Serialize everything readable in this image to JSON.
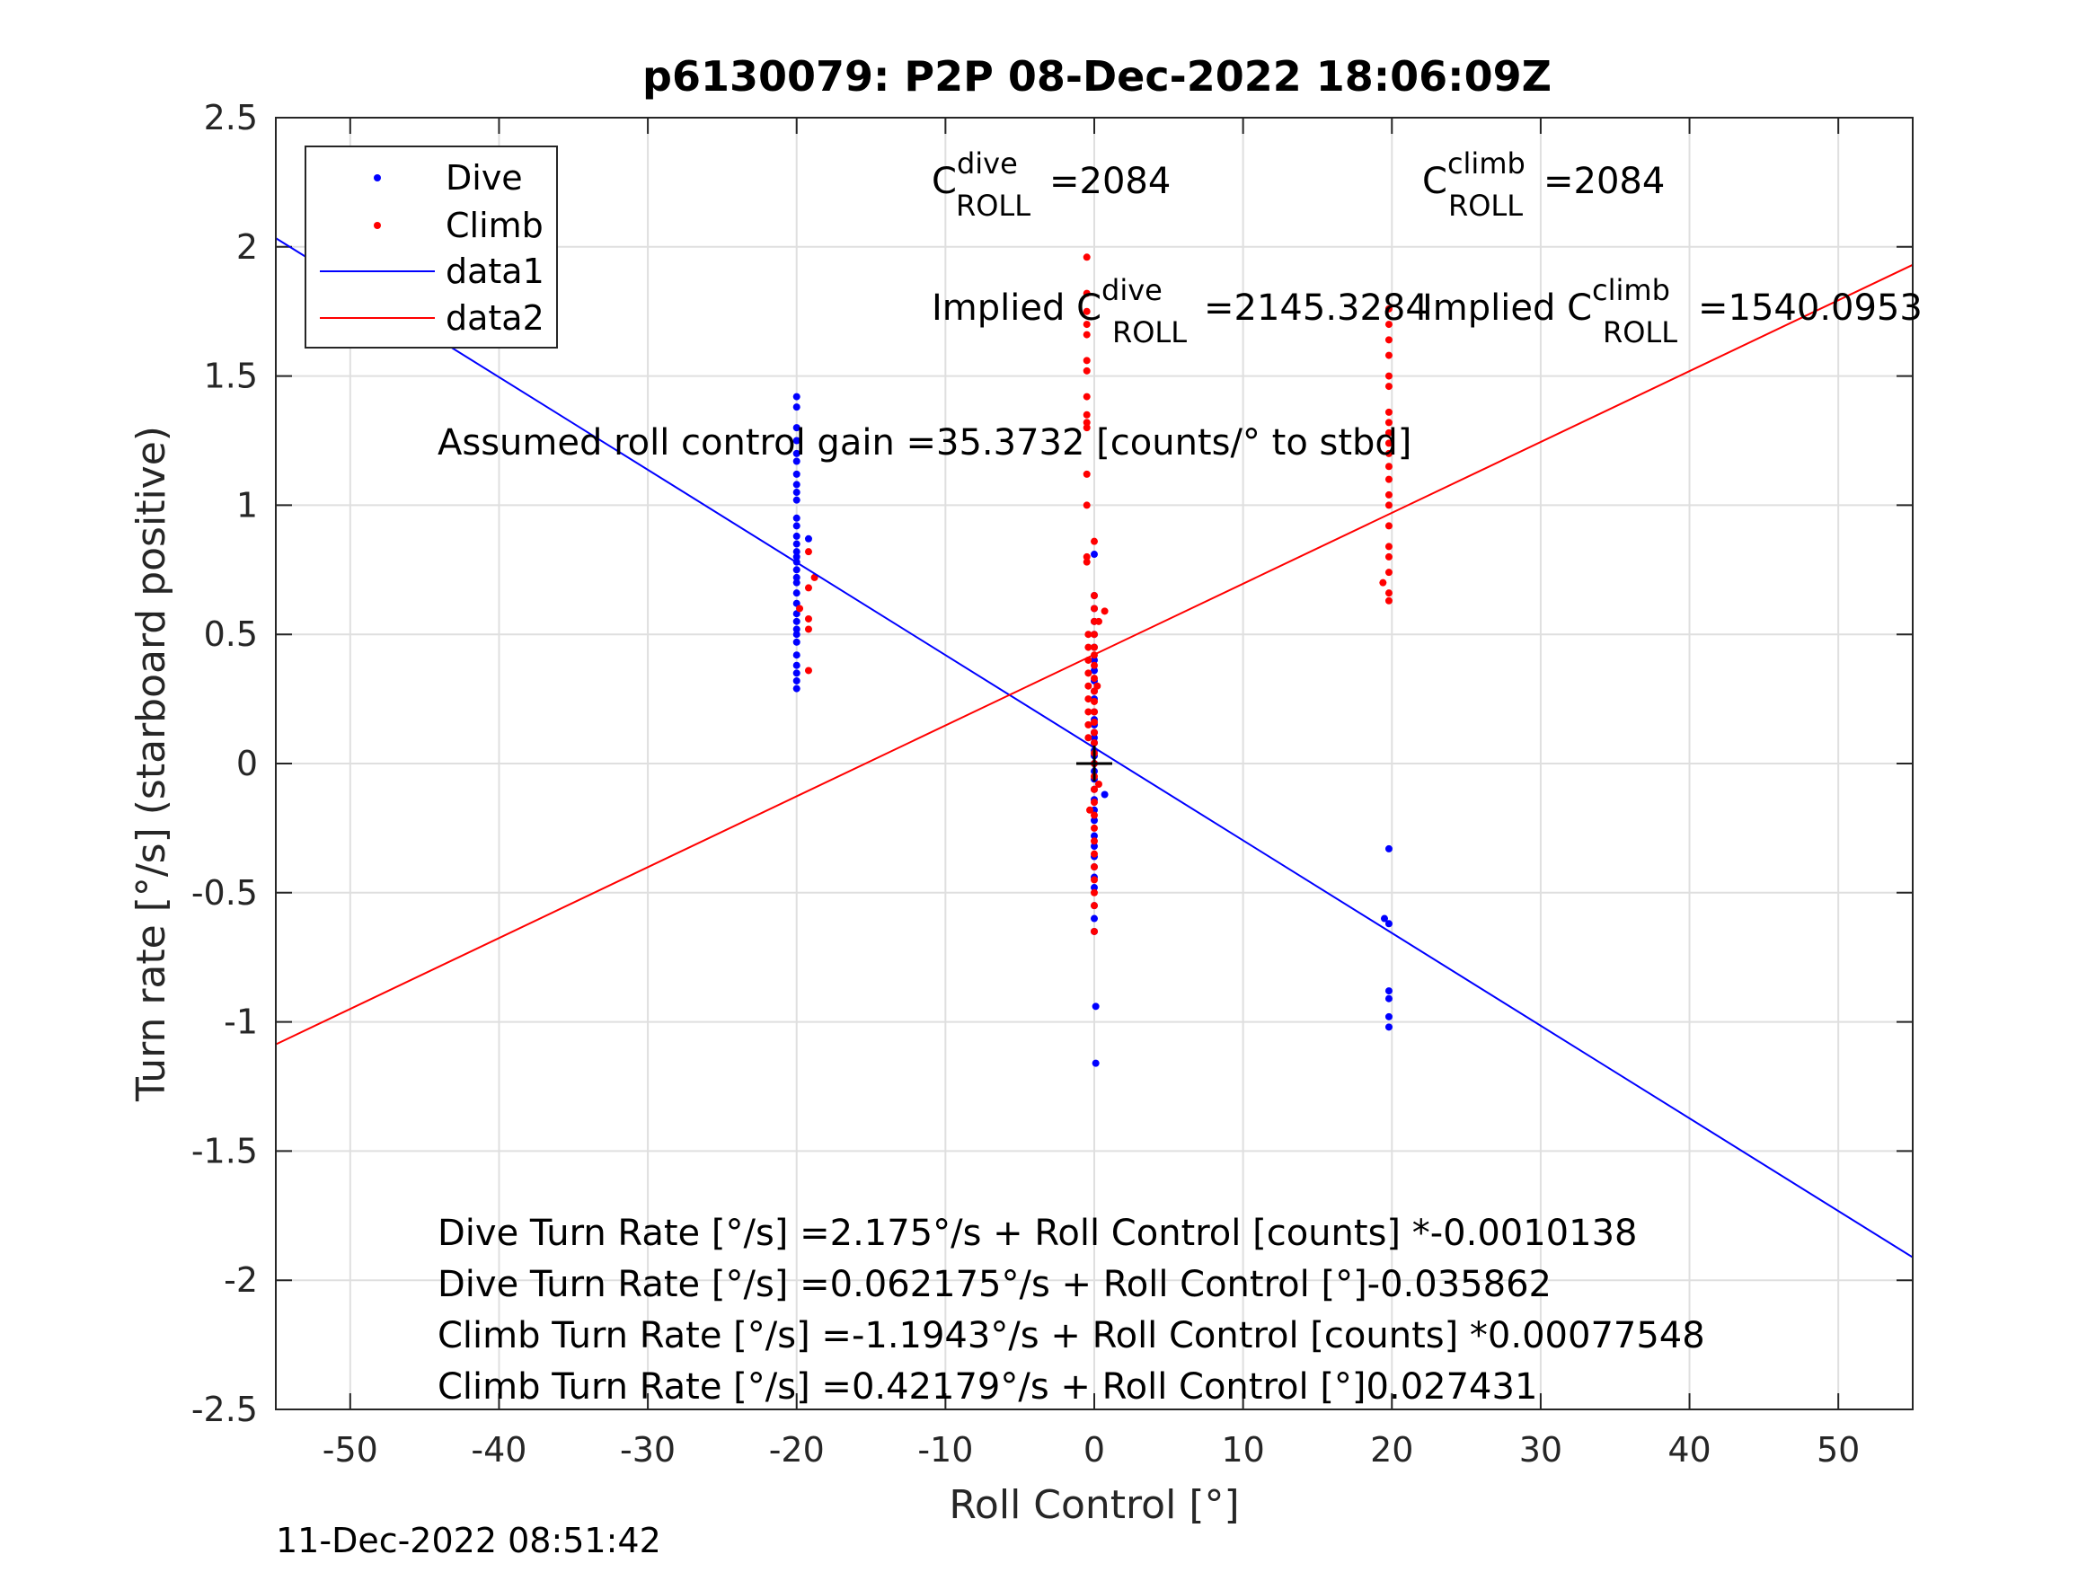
{
  "chart_data": {
    "type": "scatter",
    "title": "p6130079: P2P 08-Dec-2022 18:06:09Z",
    "xlabel": "Roll Control [°]",
    "ylabel": "Turn rate [°/s] (starboard positive)",
    "xlim": [
      -55,
      55
    ],
    "ylim": [
      -2.5,
      2.5
    ],
    "xticks": [
      -50,
      -40,
      -30,
      -20,
      -10,
      0,
      10,
      20,
      30,
      40,
      50
    ],
    "xtick_labels": [
      "-50",
      "-40",
      "-30",
      "-20",
      "-10",
      "0",
      "10",
      "20",
      "30",
      "40",
      "50"
    ],
    "yticks": [
      2.5,
      2,
      1.5,
      1,
      0.5,
      0,
      -0.5,
      -1,
      -1.5,
      -2,
      -2.5
    ],
    "ytick_labels": [
      "2.5",
      "2",
      "1.5",
      "1",
      "0.5",
      "0",
      "-0.5",
      "-1",
      "-1.5",
      "-2",
      "-2.5"
    ],
    "grid": true,
    "legend_position": "top-left",
    "series": [
      {
        "name": "Dive",
        "kind": "points",
        "color": "#0000ff",
        "points": [
          [
            -20,
            1.42
          ],
          [
            -20,
            1.38
          ],
          [
            -20,
            1.3
          ],
          [
            -20,
            1.25
          ],
          [
            -20,
            1.2
          ],
          [
            -20,
            1.17
          ],
          [
            -20,
            1.12
          ],
          [
            -20,
            1.08
          ],
          [
            -20,
            1.05
          ],
          [
            -20,
            1.02
          ],
          [
            -20,
            0.95
          ],
          [
            -20,
            0.92
          ],
          [
            -20,
            0.88
          ],
          [
            -20,
            0.85
          ],
          [
            -20,
            0.82
          ],
          [
            -20,
            0.8
          ],
          [
            -20,
            0.78
          ],
          [
            -20,
            0.75
          ],
          [
            -20,
            0.72
          ],
          [
            -20,
            0.7
          ],
          [
            -20,
            0.66
          ],
          [
            -20,
            0.62
          ],
          [
            -20,
            0.58
          ],
          [
            -20,
            0.55
          ],
          [
            -20,
            0.52
          ],
          [
            -20,
            0.5
          ],
          [
            -20,
            0.47
          ],
          [
            -20,
            0.42
          ],
          [
            -20,
            0.38
          ],
          [
            -20,
            0.35
          ],
          [
            -20,
            0.32
          ],
          [
            -20,
            0.29
          ],
          [
            -19.2,
            0.87
          ],
          [
            0,
            0.81
          ],
          [
            0,
            0.65
          ],
          [
            0,
            0.6
          ],
          [
            0,
            0.55
          ],
          [
            0,
            0.5
          ],
          [
            0,
            0.45
          ],
          [
            0,
            0.4
          ],
          [
            0,
            0.36
          ],
          [
            0,
            0.32
          ],
          [
            0,
            0.28
          ],
          [
            0,
            0.25
          ],
          [
            0,
            0.2
          ],
          [
            0,
            0.17
          ],
          [
            0,
            0.15
          ],
          [
            0,
            0.12
          ],
          [
            0,
            0.1
          ],
          [
            0,
            0.08
          ],
          [
            0,
            0.05
          ],
          [
            0,
            0.03
          ],
          [
            0,
            0.0
          ],
          [
            0,
            -0.03
          ],
          [
            0,
            -0.06
          ],
          [
            0,
            -0.1
          ],
          [
            0,
            -0.14
          ],
          [
            0,
            -0.18
          ],
          [
            0,
            -0.22
          ],
          [
            0,
            -0.28
          ],
          [
            0,
            -0.32
          ],
          [
            0,
            -0.36
          ],
          [
            0,
            -0.4
          ],
          [
            0,
            -0.44
          ],
          [
            0,
            -0.48
          ],
          [
            0,
            -0.55
          ],
          [
            0,
            -0.6
          ],
          [
            0,
            -0.65
          ],
          [
            0.1,
            -0.94
          ],
          [
            0.1,
            -1.16
          ],
          [
            0.7,
            -0.12
          ],
          [
            19.5,
            -0.6
          ],
          [
            19.8,
            -0.33
          ],
          [
            19.8,
            -0.62
          ],
          [
            19.8,
            -0.88
          ],
          [
            19.8,
            -0.91
          ],
          [
            19.8,
            -0.98
          ],
          [
            19.8,
            -1.02
          ]
        ]
      },
      {
        "name": "Climb",
        "kind": "points",
        "color": "#ff0000",
        "points": [
          [
            -19.2,
            0.82
          ],
          [
            -19.2,
            0.68
          ],
          [
            -19.2,
            0.56
          ],
          [
            -19.2,
            0.52
          ],
          [
            -19.2,
            0.36
          ],
          [
            -18.8,
            0.72
          ],
          [
            -19.8,
            0.6
          ],
          [
            -0.5,
            1.96
          ],
          [
            -0.5,
            1.82
          ],
          [
            -0.5,
            1.75
          ],
          [
            -0.5,
            1.7
          ],
          [
            -0.5,
            1.66
          ],
          [
            -0.5,
            1.56
          ],
          [
            -0.5,
            1.52
          ],
          [
            -0.5,
            1.42
          ],
          [
            -0.5,
            1.35
          ],
          [
            -0.5,
            1.32
          ],
          [
            -0.5,
            1.3
          ],
          [
            -0.5,
            1.12
          ],
          [
            -0.5,
            1.0
          ],
          [
            -0.5,
            0.8
          ],
          [
            -0.5,
            0.78
          ],
          [
            -0.4,
            0.5
          ],
          [
            -0.4,
            0.45
          ],
          [
            -0.4,
            0.4
          ],
          [
            -0.4,
            0.35
          ],
          [
            -0.4,
            0.3
          ],
          [
            -0.4,
            0.25
          ],
          [
            -0.4,
            0.2
          ],
          [
            -0.4,
            0.15
          ],
          [
            -0.4,
            0.1
          ],
          [
            0,
            0.86
          ],
          [
            0,
            0.65
          ],
          [
            0,
            0.6
          ],
          [
            0,
            0.55
          ],
          [
            0,
            0.5
          ],
          [
            0,
            0.45
          ],
          [
            0,
            0.42
          ],
          [
            0,
            0.38
          ],
          [
            0,
            0.33
          ],
          [
            0,
            0.28
          ],
          [
            0,
            0.24
          ],
          [
            0,
            0.2
          ],
          [
            0,
            0.16
          ],
          [
            0,
            0.12
          ],
          [
            0,
            0.08
          ],
          [
            0,
            0.04
          ],
          [
            0,
            0.0
          ],
          [
            0,
            -0.05
          ],
          [
            0,
            -0.1
          ],
          [
            0,
            -0.15
          ],
          [
            0,
            -0.2
          ],
          [
            0,
            -0.25
          ],
          [
            0,
            -0.3
          ],
          [
            0,
            -0.35
          ],
          [
            0,
            -0.4
          ],
          [
            0,
            -0.45
          ],
          [
            0,
            -0.5
          ],
          [
            0,
            -0.55
          ],
          [
            0,
            -0.65
          ],
          [
            0.7,
            0.59
          ],
          [
            0.3,
            0.55
          ],
          [
            0.3,
            -0.08
          ],
          [
            -0.3,
            -0.18
          ],
          [
            0.2,
            0.3
          ],
          [
            19.8,
            1.76
          ],
          [
            19.8,
            1.7
          ],
          [
            19.8,
            1.64
          ],
          [
            19.8,
            1.58
          ],
          [
            19.8,
            1.5
          ],
          [
            19.8,
            1.46
          ],
          [
            19.8,
            1.36
          ],
          [
            19.8,
            1.32
          ],
          [
            19.8,
            1.28
          ],
          [
            19.8,
            1.24
          ],
          [
            19.8,
            1.2
          ],
          [
            19.8,
            1.15
          ],
          [
            19.8,
            1.1
          ],
          [
            19.8,
            1.04
          ],
          [
            19.8,
            1.0
          ],
          [
            19.8,
            0.92
          ],
          [
            19.8,
            0.84
          ],
          [
            19.8,
            0.8
          ],
          [
            19.8,
            0.74
          ],
          [
            19.8,
            0.66
          ],
          [
            19.8,
            0.63
          ],
          [
            19.4,
            0.7
          ]
        ]
      },
      {
        "name": "data1",
        "kind": "line",
        "color": "#0000ff",
        "x": [
          -55,
          55
        ],
        "y": [
          2.0336,
          -1.9113
        ]
      },
      {
        "name": "data2",
        "kind": "line",
        "color": "#ff0000",
        "x": [
          -55,
          55
        ],
        "y": [
          -1.0869,
          1.9305
        ]
      }
    ],
    "marker": {
      "symbol": "+",
      "x": 0,
      "y": 0,
      "color": "#000000"
    },
    "annotations": {
      "c_dive": {
        "prefix": "C",
        "sup": "dive",
        "sub": "ROLL",
        "value": "=2084"
      },
      "c_climb": {
        "prefix": "C",
        "sup": "climb",
        "sub": "ROLL",
        "value": "=2084"
      },
      "implied_dive": {
        "prefix": "Implied C",
        "sup": "dive",
        "sub": "ROLL",
        "value": "=2145.3284"
      },
      "implied_climb": {
        "prefix": "Implied C",
        "sup": "climb",
        "sub": "ROLL",
        "value": "=1540.0953"
      },
      "gain": "Assumed roll control gain =35.3732 [counts/° to stbd]",
      "eq1": "Dive Turn Rate [°/s] =2.175°/s + Roll Control [counts] *-0.0010138",
      "eq2": "Dive Turn Rate [°/s] =0.062175°/s + Roll Control [°]-0.035862",
      "eq3": "Climb Turn Rate [°/s] =-1.1943°/s + Roll Control [counts] *0.00077548",
      "eq4": "Climb Turn Rate [°/s] =0.42179°/s + Roll Control [°]0.027431"
    },
    "timestamp": "11-Dec-2022 08:51:42"
  }
}
